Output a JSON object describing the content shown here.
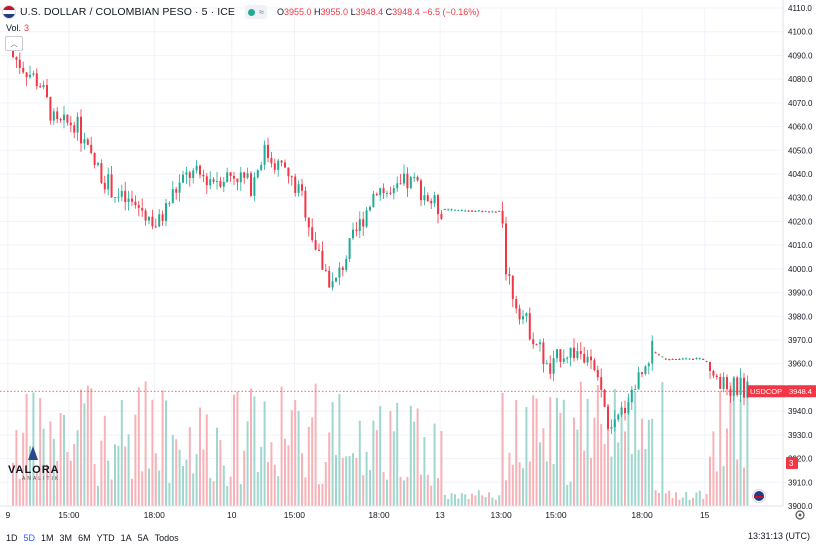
{
  "header": {
    "symbol_title": "U.S. DOLLAR / COLOMBIAN PESO · 5 · ICE",
    "ohlc": [
      {
        "key": "O",
        "value": "3955.0"
      },
      {
        "key": "H",
        "value": "3955.0"
      },
      {
        "key": "L",
        "value": "3948.4"
      },
      {
        "key": "C",
        "value": "3948.4"
      }
    ],
    "change": "−6.5 (−0.16%)"
  },
  "volume_legend": {
    "label": "Vol.",
    "value": "3"
  },
  "colors": {
    "up": "#22ab94",
    "down": "#f23645",
    "up_vol": "#9fd7cf",
    "down_vol": "#f7b2b7",
    "grid": "#f0f3fa",
    "axis_text": "#131722"
  },
  "price_tag": {
    "symbol": "USDCOP",
    "value": "3948.4"
  },
  "volume_tag": "3",
  "bottom_bar": {
    "timeframes": [
      "1D",
      "5D",
      "1M",
      "3M",
      "6M",
      "YTD",
      "1A",
      "5A",
      "Todos"
    ],
    "active": "5D",
    "clock": "13:31:13 (UTC)"
  },
  "logo": {
    "name": "VALORA",
    "sub": "ANALITIK"
  },
  "chart_data": {
    "type": "candlestick",
    "y_axis": {
      "min": 3900,
      "max": 4110,
      "ticks": [
        "4110.0",
        "4100.0",
        "4090.0",
        "4080.0",
        "4070.0",
        "4060.0",
        "4050.0",
        "4040.0",
        "4030.0",
        "4020.0",
        "4010.0",
        "4000.0",
        "3990.0",
        "3980.0",
        "3970.0",
        "3960.0",
        "3940.0",
        "3930.0",
        "3920.0",
        "3910.0",
        "3900.0"
      ],
      "tick_values": [
        4110,
        4100,
        4090,
        4080,
        4070,
        4060,
        4050,
        4040,
        4030,
        4020,
        4010,
        4000,
        3990,
        3980,
        3970,
        3960,
        3940,
        3930,
        3920,
        3910,
        3900
      ]
    },
    "x_axis": {
      "labels": [
        "9",
        "15:00",
        "18:00",
        "10",
        "15:00",
        "18:00",
        "13",
        "13:00",
        "15:00",
        "18:00",
        "15"
      ],
      "label_pos": [
        0.01,
        0.088,
        0.197,
        0.296,
        0.376,
        0.484,
        0.562,
        0.64,
        0.71,
        0.82,
        0.9
      ]
    },
    "last_price": 3948.4,
    "price_keypoints": [
      [
        0.0,
        4094
      ],
      [
        0.02,
        4088
      ],
      [
        0.05,
        4078
      ],
      [
        0.07,
        4060
      ],
      [
        0.095,
        4062
      ],
      [
        0.115,
        4046
      ],
      [
        0.15,
        4030
      ],
      [
        0.18,
        4025
      ],
      [
        0.2,
        4018
      ],
      [
        0.22,
        4032
      ],
      [
        0.24,
        4040
      ],
      [
        0.27,
        4038
      ],
      [
        0.3,
        4040
      ],
      [
        0.32,
        4035
      ],
      [
        0.335,
        4050
      ],
      [
        0.36,
        4042
      ],
      [
        0.385,
        4030
      ],
      [
        0.405,
        4005
      ],
      [
        0.425,
        3992
      ],
      [
        0.44,
        4005
      ],
      [
        0.46,
        4020
      ],
      [
        0.48,
        4035
      ],
      [
        0.5,
        4030
      ],
      [
        0.515,
        4036
      ],
      [
        0.53,
        4036
      ],
      [
        0.545,
        4030
      ],
      [
        0.56,
        4025
      ],
      [
        0.64,
        4024
      ],
      [
        0.645,
        4001
      ],
      [
        0.655,
        3988
      ],
      [
        0.67,
        3978
      ],
      [
        0.69,
        3965
      ],
      [
        0.7,
        3955
      ],
      [
        0.715,
        3965
      ],
      [
        0.74,
        3965
      ],
      [
        0.755,
        3958
      ],
      [
        0.765,
        3948
      ],
      [
        0.78,
        3930
      ],
      [
        0.8,
        3945
      ],
      [
        0.815,
        3955
      ],
      [
        0.83,
        3966
      ],
      [
        0.85,
        3962
      ],
      [
        0.88,
        3962
      ],
      [
        0.9,
        3962
      ],
      [
        0.915,
        3950
      ],
      [
        0.93,
        3950
      ]
    ],
    "volumes_high_pct": [
      0.65,
      0.62,
      0.7,
      0.55,
      0.58,
      0.6,
      0.5,
      0.52,
      0.62,
      0.55,
      0.48,
      0.56,
      0.52,
      0.5,
      0.4,
      0.42,
      0.38,
      0.44,
      0.4,
      0.3,
      0.28,
      0.25,
      0.22,
      0.2
    ]
  }
}
